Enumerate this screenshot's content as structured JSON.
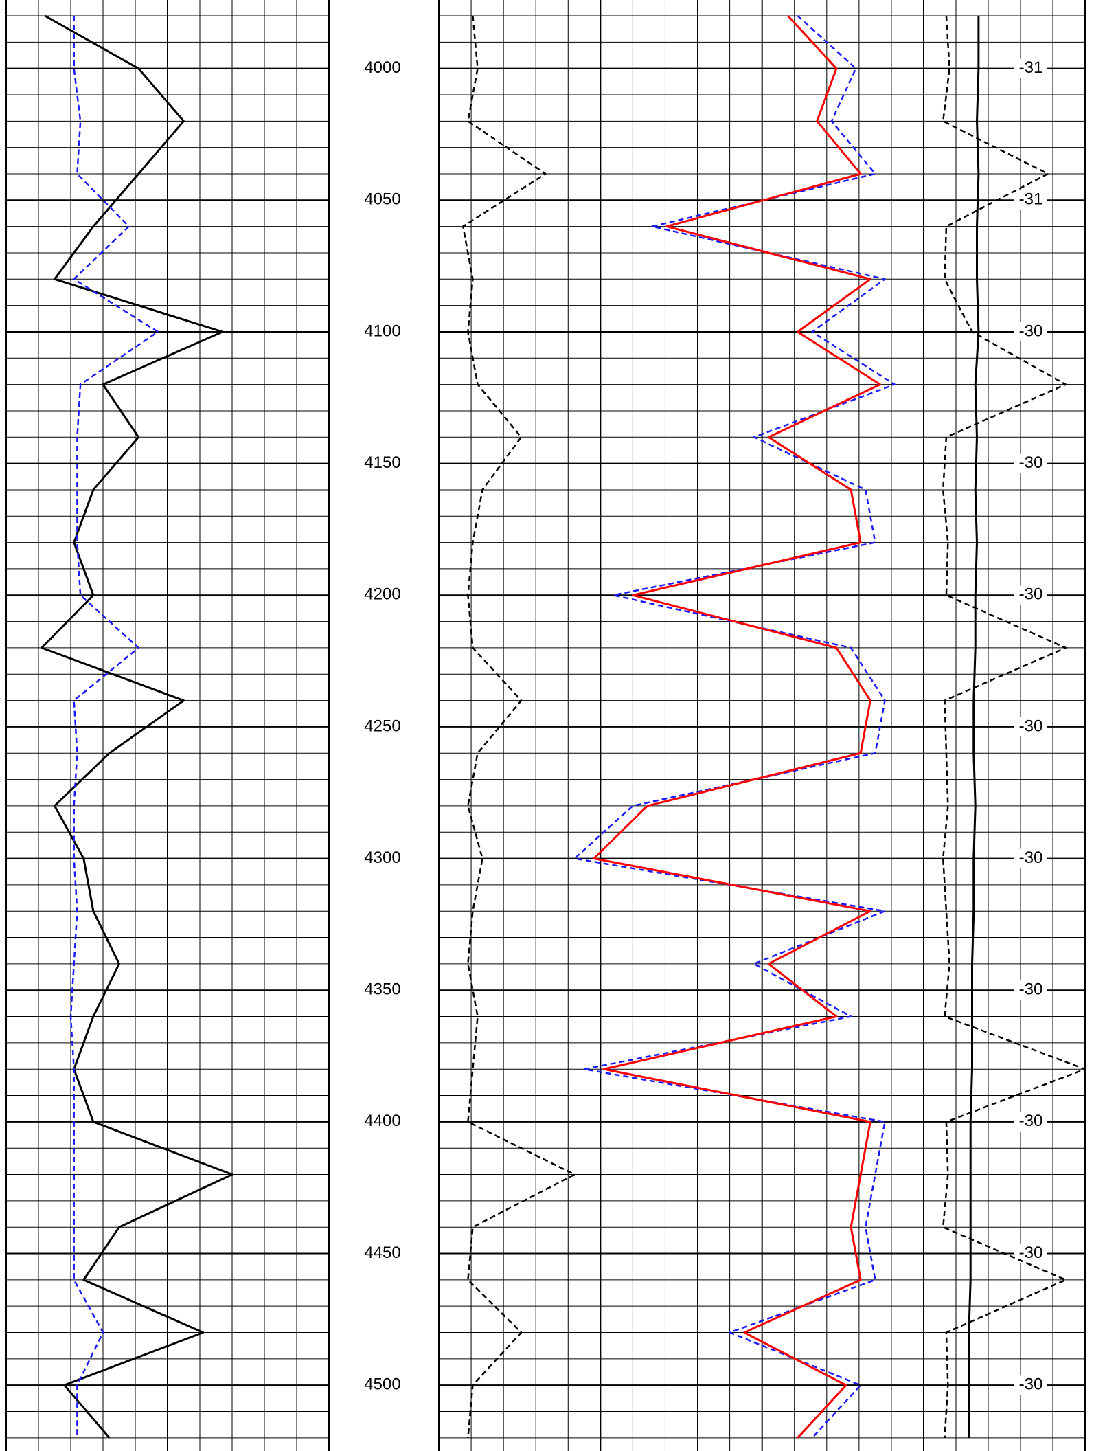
{
  "chart_data": {
    "type": "well_log",
    "ylim": [
      3974,
      4525
    ],
    "yticks": [
      4000,
      4050,
      4100,
      4150,
      4200,
      4250,
      4300,
      4350,
      4400,
      4450,
      4500
    ],
    "grid_step": 10,
    "track_labels": [
      "-31",
      "-31",
      "-30",
      "-30",
      "-30",
      "-30",
      "-30",
      "-30",
      "-30",
      "-30",
      "-30"
    ],
    "depth": [
      3980,
      4000,
      4020,
      4040,
      4060,
      4080,
      4100,
      4120,
      4140,
      4160,
      4180,
      4200,
      4220,
      4240,
      4260,
      4280,
      4300,
      4320,
      4340,
      4360,
      4380,
      4400,
      4420,
      4440,
      4460,
      4480,
      4500,
      4520
    ],
    "tracks": [
      {
        "xlim": [
          0,
          100
        ],
        "divisions": 10
      },
      {
        "xlim": [
          0,
          100
        ],
        "divisions": 15
      },
      {
        "xlim": [
          0,
          100
        ],
        "divisions": 5
      }
    ],
    "series": [
      {
        "track": 0,
        "color": "#000000",
        "dash": false,
        "values": [
          12,
          41,
          55,
          41,
          27,
          15,
          67,
          30,
          41,
          27,
          21,
          27,
          11,
          55,
          32,
          15,
          24,
          27,
          35,
          27,
          21,
          27,
          70,
          35,
          24,
          61,
          18,
          32
        ]
      },
      {
        "track": 0,
        "color": "#1a1aff",
        "dash": true,
        "values": [
          21,
          21,
          23,
          22,
          38,
          21,
          47,
          23,
          22,
          22,
          22,
          23,
          41,
          21,
          22,
          21,
          21,
          22,
          21,
          20,
          21,
          21,
          21,
          21,
          21,
          30,
          22,
          22
        ]
      },
      {
        "track": 1,
        "color": "#000000",
        "dash": true,
        "values": [
          7,
          8,
          6,
          22,
          5,
          7,
          6,
          8,
          17,
          9,
          7,
          6,
          7,
          17,
          8,
          6,
          9,
          7,
          6,
          8,
          7,
          6,
          28,
          7,
          6,
          17,
          7,
          6
        ]
      },
      {
        "track": 1,
        "color": "#1a1aff",
        "dash": true,
        "values": [
          74,
          86,
          81,
          90,
          44,
          92,
          77,
          94,
          65,
          88,
          90,
          36,
          85,
          92,
          90,
          40,
          28,
          92,
          65,
          85,
          30,
          92,
          90,
          88,
          90,
          60,
          87,
          77
        ]
      },
      {
        "track": 1,
        "color": "#ff0000",
        "dash": false,
        "values": [
          72,
          82,
          78,
          87,
          47,
          89,
          74,
          91,
          68,
          85,
          87,
          40,
          82,
          89,
          87,
          43,
          32,
          89,
          68,
          82,
          34,
          89,
          87,
          85,
          87,
          63,
          84,
          74
        ]
      },
      {
        "track": 2,
        "color": "#000000",
        "dash": true,
        "values": [
          14,
          16,
          12,
          77,
          14,
          13,
          30,
          88,
          14,
          12,
          15,
          14,
          88,
          13,
          14,
          15,
          12,
          14,
          16,
          13,
          100,
          14,
          15,
          12,
          88,
          14,
          15,
          13
        ]
      },
      {
        "track": 2,
        "color": "#000000",
        "dash": false,
        "values": [
          34,
          34,
          33,
          34,
          33,
          33,
          34,
          32,
          33,
          32,
          33,
          32,
          32,
          31,
          31,
          32,
          31,
          31,
          30,
          30,
          30,
          29,
          29,
          29,
          29,
          28,
          28,
          28
        ]
      }
    ]
  }
}
